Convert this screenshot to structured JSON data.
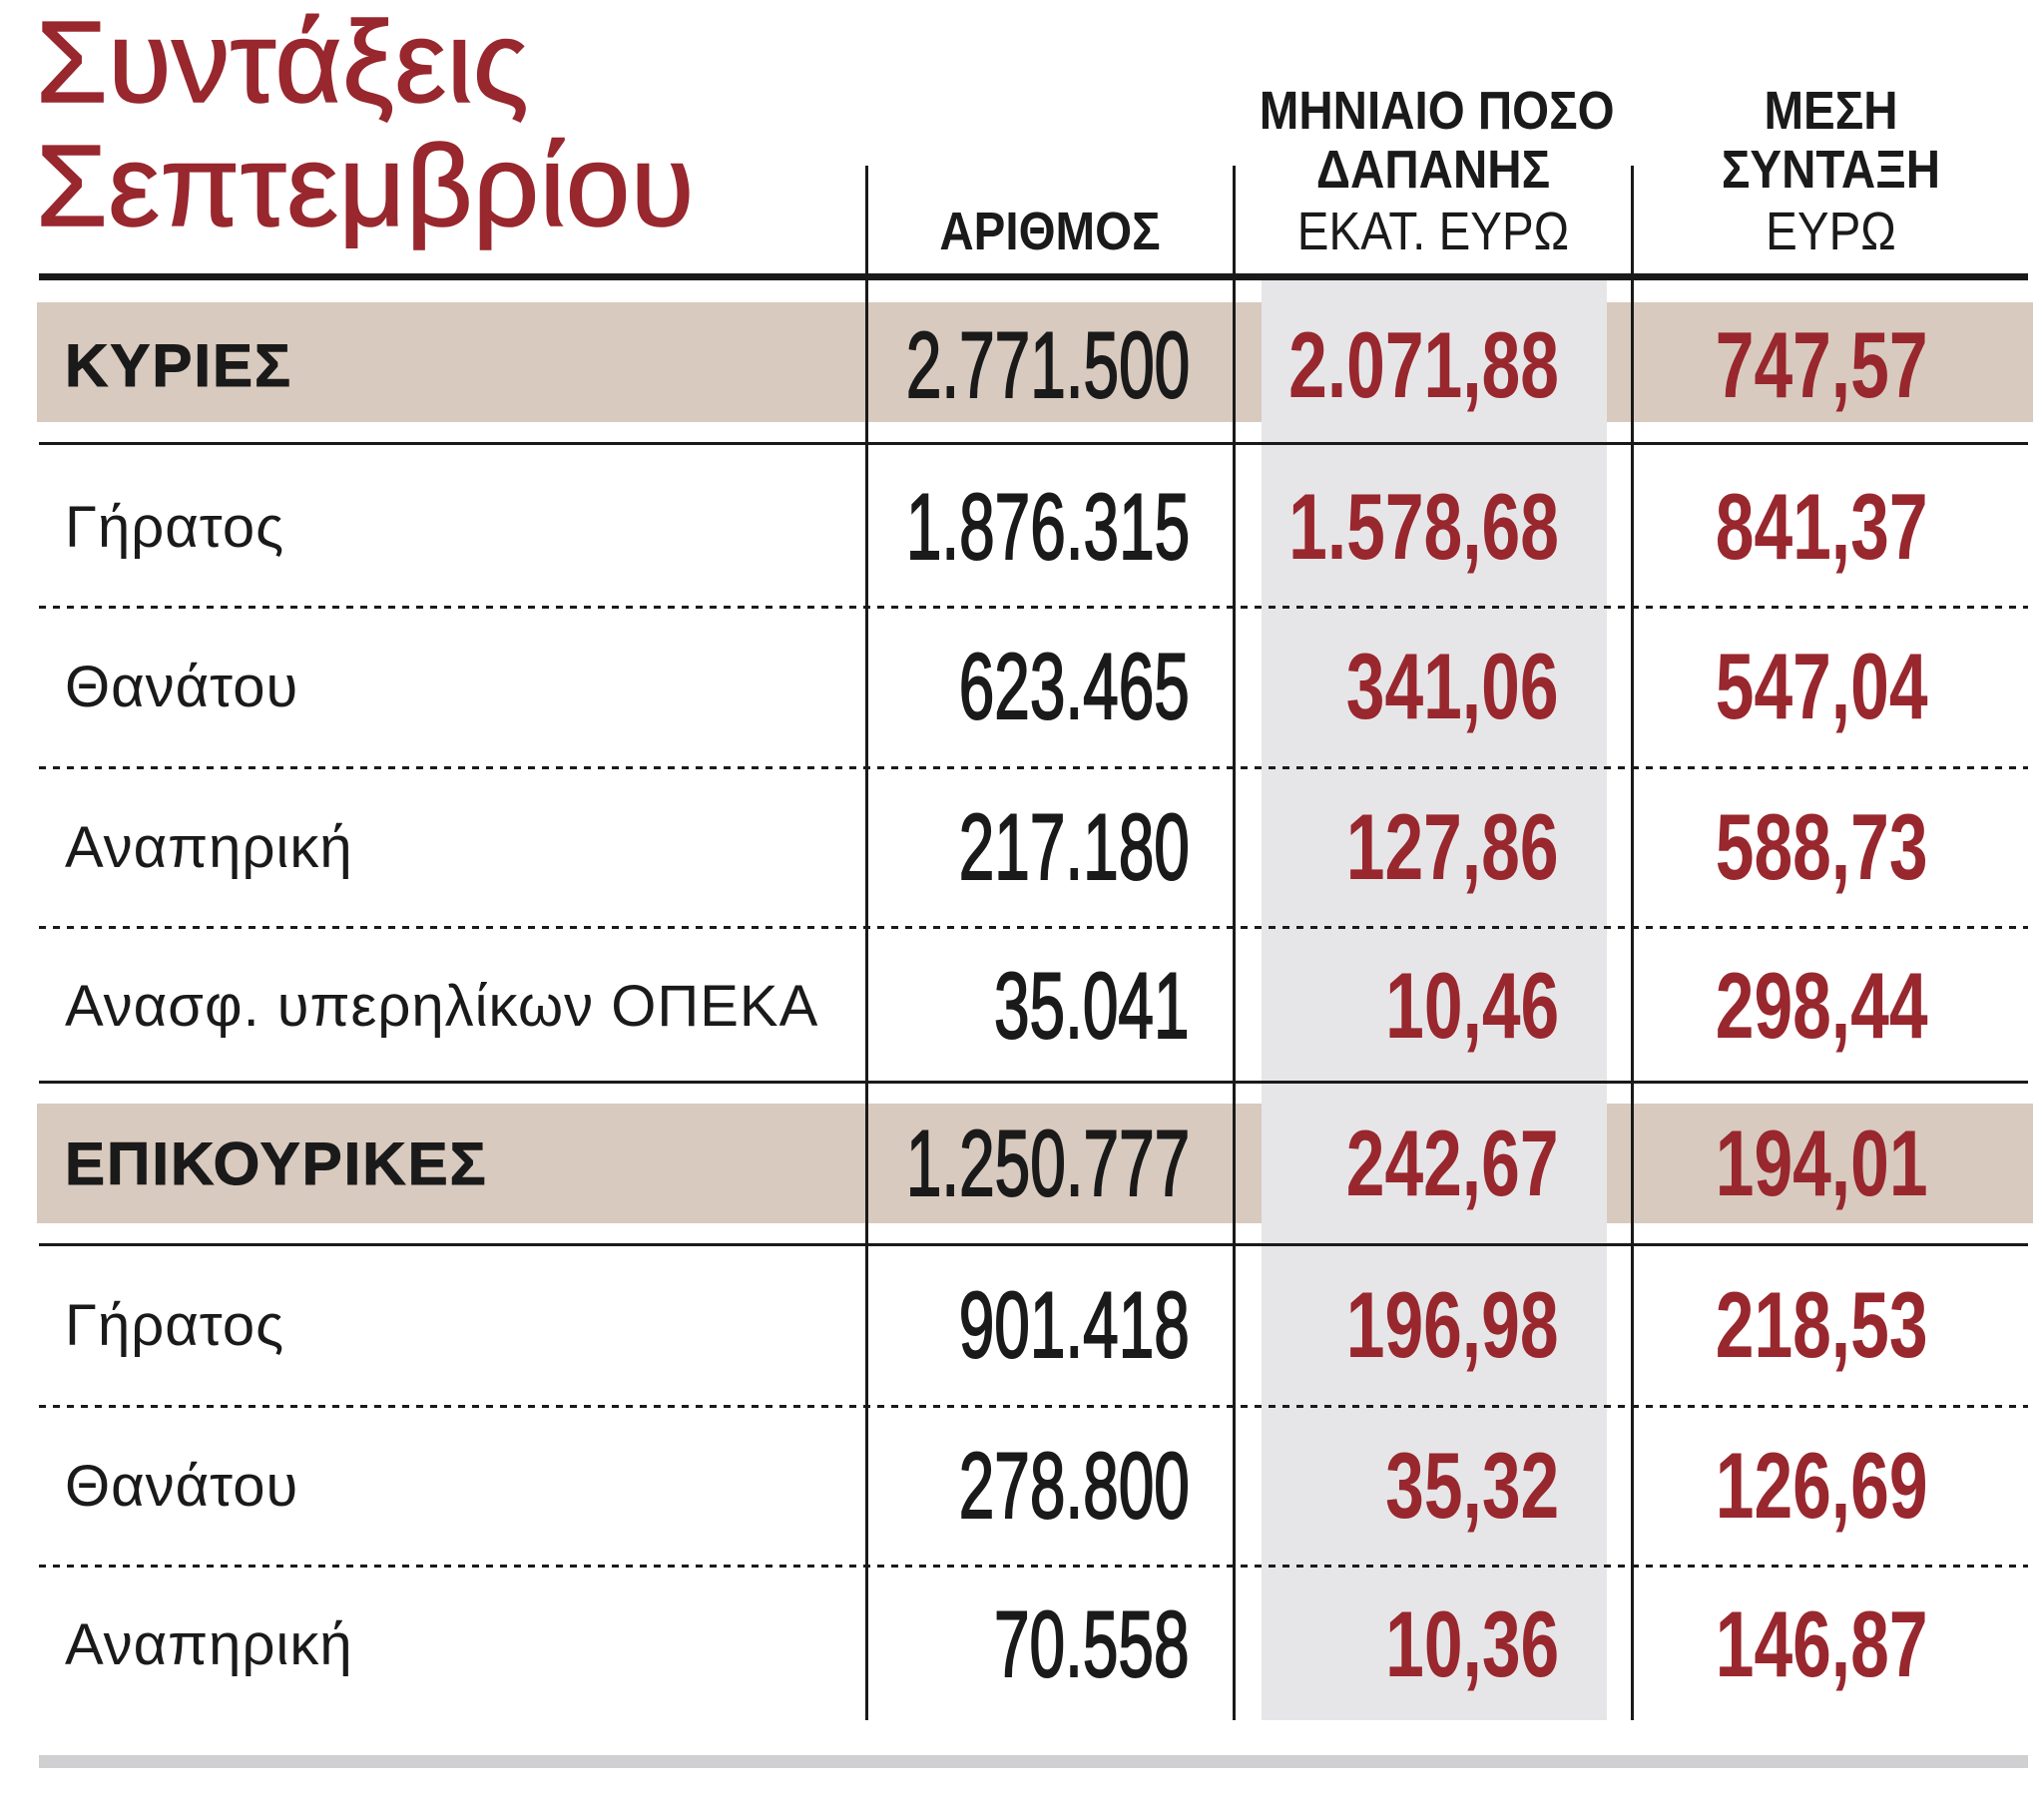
{
  "chart_data": {
    "type": "table",
    "title": "Συντάξεις Σεπτεμβρίου",
    "columns": [
      {
        "lines": [
          "ΑΡΙΘΜΟΣ"
        ]
      },
      {
        "lines": [
          "ΜΗΝΙΑΙΟ ΠΟΣΟ",
          "ΔΑΠΑΝΗΣ"
        ],
        "unit": "ΕΚΑΤ. ΕΥΡΩ"
      },
      {
        "lines": [
          "ΜΕΣΗ",
          "ΣΥΝΤΑΞΗ"
        ],
        "unit": "ΕΥΡΩ"
      }
    ],
    "rows": [
      {
        "label": "ΚΥΡΙΕΣ",
        "group": true,
        "values": [
          "2.771.500",
          "2.071,88",
          "747,57"
        ]
      },
      {
        "label": "Γήρατος",
        "group": false,
        "values": [
          "1.876.315",
          "1.578,68",
          "841,37"
        ]
      },
      {
        "label": "Θανάτου",
        "group": false,
        "values": [
          "623.465",
          "341,06",
          "547,04"
        ]
      },
      {
        "label": "Αναπηρική",
        "group": false,
        "values": [
          "217.180",
          "127,86",
          "588,73"
        ]
      },
      {
        "label": "Ανασφ. υπερηλίκων ΟΠΕΚΑ",
        "group": false,
        "values": [
          "35.041",
          "10,46",
          "298,44"
        ]
      },
      {
        "label": "ΕΠΙΚΟΥΡΙΚΕΣ",
        "group": true,
        "values": [
          "1.250.777",
          "242,67",
          "194,01"
        ]
      },
      {
        "label": "Γήρατος",
        "group": false,
        "values": [
          "901.418",
          "196,98",
          "218,53"
        ]
      },
      {
        "label": "Θανάτου",
        "group": false,
        "values": [
          "278.800",
          "35,32",
          "126,69"
        ]
      },
      {
        "label": "Αναπηρική",
        "group": false,
        "values": [
          "70.558",
          "10,36",
          "146,87"
        ]
      }
    ]
  },
  "colors": {
    "accent_red": "#98272e",
    "group_band": "#d8cabe",
    "highlight_column": "#e6e6e8",
    "ink": "#1b1a1a",
    "rules": "#1b1a1a",
    "bottom_bar": "#d0d0d2"
  }
}
